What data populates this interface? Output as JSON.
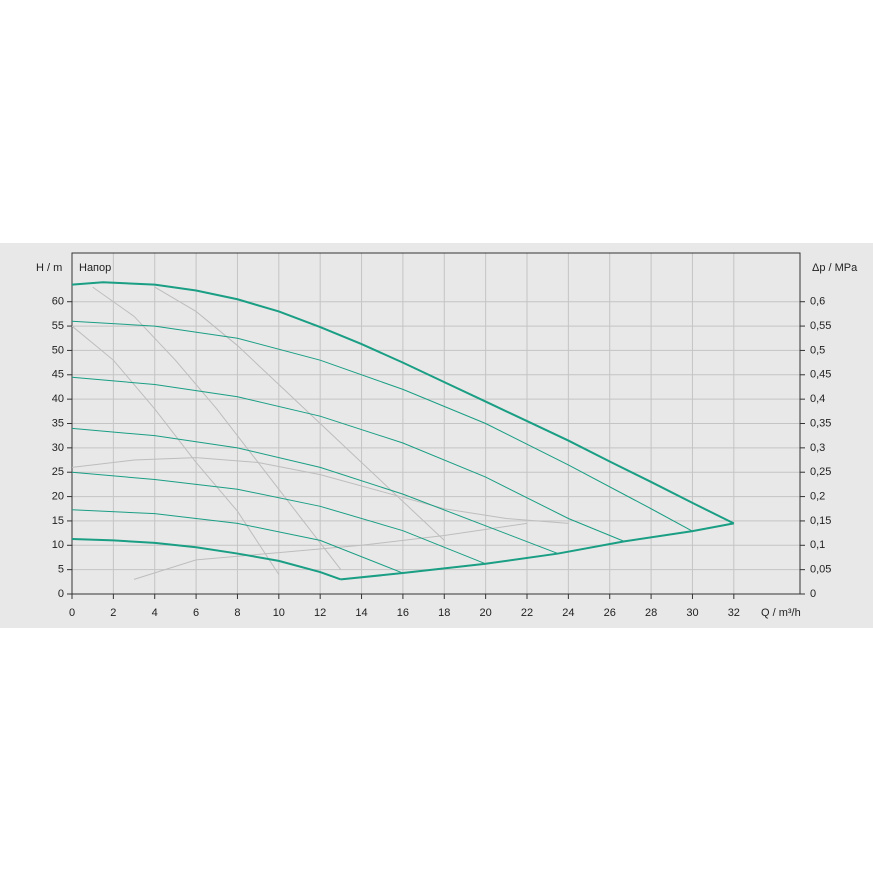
{
  "chart_data": {
    "type": "line",
    "annotation": "Напор",
    "y_label": "H / m",
    "y2_label": "Δp / MPa",
    "x_label": "Q / m³/h",
    "xlim": [
      0,
      35.2
    ],
    "ylim": [
      0,
      70
    ],
    "y2lim": [
      0,
      0.7
    ],
    "xticks": [
      0,
      2,
      4,
      6,
      8,
      10,
      12,
      14,
      16,
      18,
      20,
      22,
      24,
      26,
      28,
      30,
      32
    ],
    "yticks": [
      0,
      5,
      10,
      15,
      20,
      25,
      30,
      35,
      40,
      45,
      50,
      55,
      60
    ],
    "y2ticks": [
      0,
      {
        "value": 0.05,
        "label": "0,05"
      },
      {
        "value": 0.1,
        "label": "0,1"
      },
      {
        "value": 0.15,
        "label": "0,15"
      },
      {
        "value": 0.2,
        "label": "0,2"
      },
      {
        "value": 0.25,
        "label": "0,25"
      },
      {
        "value": 0.3,
        "label": "0,3"
      },
      {
        "value": 0.35,
        "label": "0,35"
      },
      {
        "value": 0.4,
        "label": "0,4"
      },
      {
        "value": 0.45,
        "label": "0,45"
      },
      {
        "value": 0.5,
        "label": "0,5"
      },
      {
        "value": 0.55,
        "label": "0,55"
      },
      {
        "value": 0.6,
        "label": "0,6"
      }
    ],
    "grid": true,
    "series": [
      {
        "color": "#bdbdbd",
        "width": 1,
        "x": [
          0,
          3,
          6,
          9,
          12,
          15,
          18,
          21,
          24
        ],
        "values": [
          26,
          27.5,
          28,
          27,
          24.5,
          21,
          17.5,
          15.5,
          14.5
        ]
      },
      {
        "color": "#bdbdbd",
        "width": 1,
        "x": [
          1,
          3,
          5,
          7,
          9,
          11,
          13
        ],
        "values": [
          63,
          57,
          48,
          38,
          27,
          16,
          5
        ]
      },
      {
        "color": "#bdbdbd",
        "width": 1,
        "x": [
          4,
          6,
          8,
          10,
          12,
          14,
          16,
          18
        ],
        "values": [
          63,
          58,
          51,
          43,
          35,
          27,
          19,
          11
        ]
      },
      {
        "color": "#bdbdbd",
        "width": 1,
        "x": [
          0,
          2,
          4,
          6,
          8,
          10
        ],
        "values": [
          55,
          48,
          38,
          27,
          17,
          4
        ]
      },
      {
        "color": "#bdbdbd",
        "width": 1,
        "x": [
          3,
          6,
          10,
          14,
          18,
          22
        ],
        "values": [
          3,
          7,
          8.5,
          10,
          12,
          14.5
        ]
      },
      {
        "color": "#1a9e84",
        "width": 2,
        "x": [
          0,
          1.5,
          4,
          6,
          8,
          10,
          12,
          14,
          16,
          18,
          20,
          22,
          24,
          26,
          28,
          30,
          32
        ],
        "values": [
          63.5,
          64,
          63.5,
          62.3,
          60.5,
          58,
          54.8,
          51.3,
          47.5,
          43.5,
          39.5,
          35.5,
          31.5,
          27.2,
          23,
          18.7,
          14.5
        ]
      },
      {
        "color": "#1a9e84",
        "width": 1,
        "x": [
          0,
          4,
          8,
          12,
          16,
          20,
          24,
          28,
          30
        ],
        "values": [
          56,
          55,
          52.5,
          48,
          42,
          35,
          26.5,
          17.5,
          12.9
        ]
      },
      {
        "color": "#1a9e84",
        "width": 1,
        "x": [
          0,
          4,
          8,
          12,
          16,
          20,
          24,
          26.7
        ],
        "values": [
          44.5,
          43,
          40.5,
          36.5,
          31,
          24,
          15.5,
          10.8
        ]
      },
      {
        "color": "#1a9e84",
        "width": 1,
        "x": [
          0,
          4,
          8,
          12,
          16,
          20,
          23.5
        ],
        "values": [
          34,
          32.5,
          30,
          26,
          20.5,
          14,
          8.3
        ]
      },
      {
        "color": "#1a9e84",
        "width": 1,
        "x": [
          0,
          4,
          8,
          12,
          16,
          20
        ],
        "values": [
          25,
          23.5,
          21.5,
          18,
          13,
          6.2
        ]
      },
      {
        "color": "#1a9e84",
        "width": 1,
        "x": [
          0,
          4,
          8,
          12,
          16
        ],
        "values": [
          17.3,
          16.5,
          14.5,
          11,
          4.3
        ]
      },
      {
        "color": "#1a9e84",
        "width": 2,
        "x": [
          0,
          2,
          4,
          6,
          8,
          10,
          12,
          13
        ],
        "values": [
          11.3,
          11,
          10.5,
          9.6,
          8.3,
          6.8,
          4.5,
          3
        ]
      },
      {
        "color": "#1a9e84",
        "width": 2,
        "x": [
          13,
          16,
          20,
          23.5,
          26.7,
          30,
          32
        ],
        "values": [
          3,
          4.3,
          6.2,
          8.3,
          10.8,
          12.9,
          14.5
        ]
      }
    ]
  }
}
